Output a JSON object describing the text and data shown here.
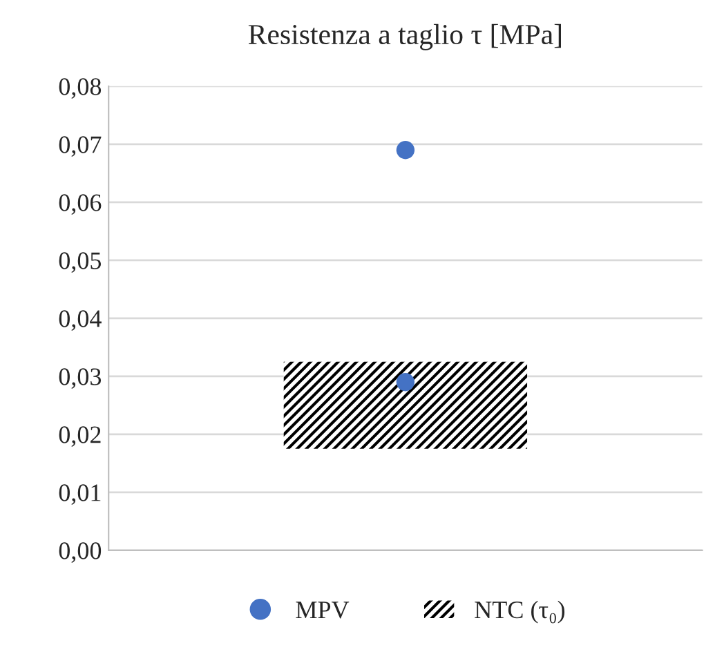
{
  "chart_data": {
    "type": "bar",
    "title": "Resistenza a taglio τ [MPa]",
    "categories": [
      null
    ],
    "series": [
      {
        "name": "MPV",
        "type": "scatter",
        "color": "#4472c4",
        "x": [
          null,
          null
        ],
        "values": [
          0.069,
          0.029
        ]
      },
      {
        "name": "NTC (τ₀)",
        "color": "#000000",
        "base": [
          0.0175
        ],
        "values": [
          0.015
        ]
      }
    ],
    "ylim": [
      0,
      0.08
    ],
    "yticks": [
      {
        "value": 0,
        "label": "0,00"
      },
      {
        "value": 0.01,
        "label": "0,01"
      },
      {
        "value": 0.02,
        "label": "0,02"
      },
      {
        "value": 0.03,
        "label": "0,03"
      },
      {
        "value": 0.04,
        "label": "0,04"
      },
      {
        "value": 0.05,
        "label": "0,05"
      },
      {
        "value": 0.06,
        "label": "0,06"
      },
      {
        "value": 0.07,
        "label": "0,07"
      },
      {
        "value": 0.08,
        "label": "0,08"
      }
    ],
    "grid": "y",
    "legend": "bottom",
    "marker": "circle"
  }
}
